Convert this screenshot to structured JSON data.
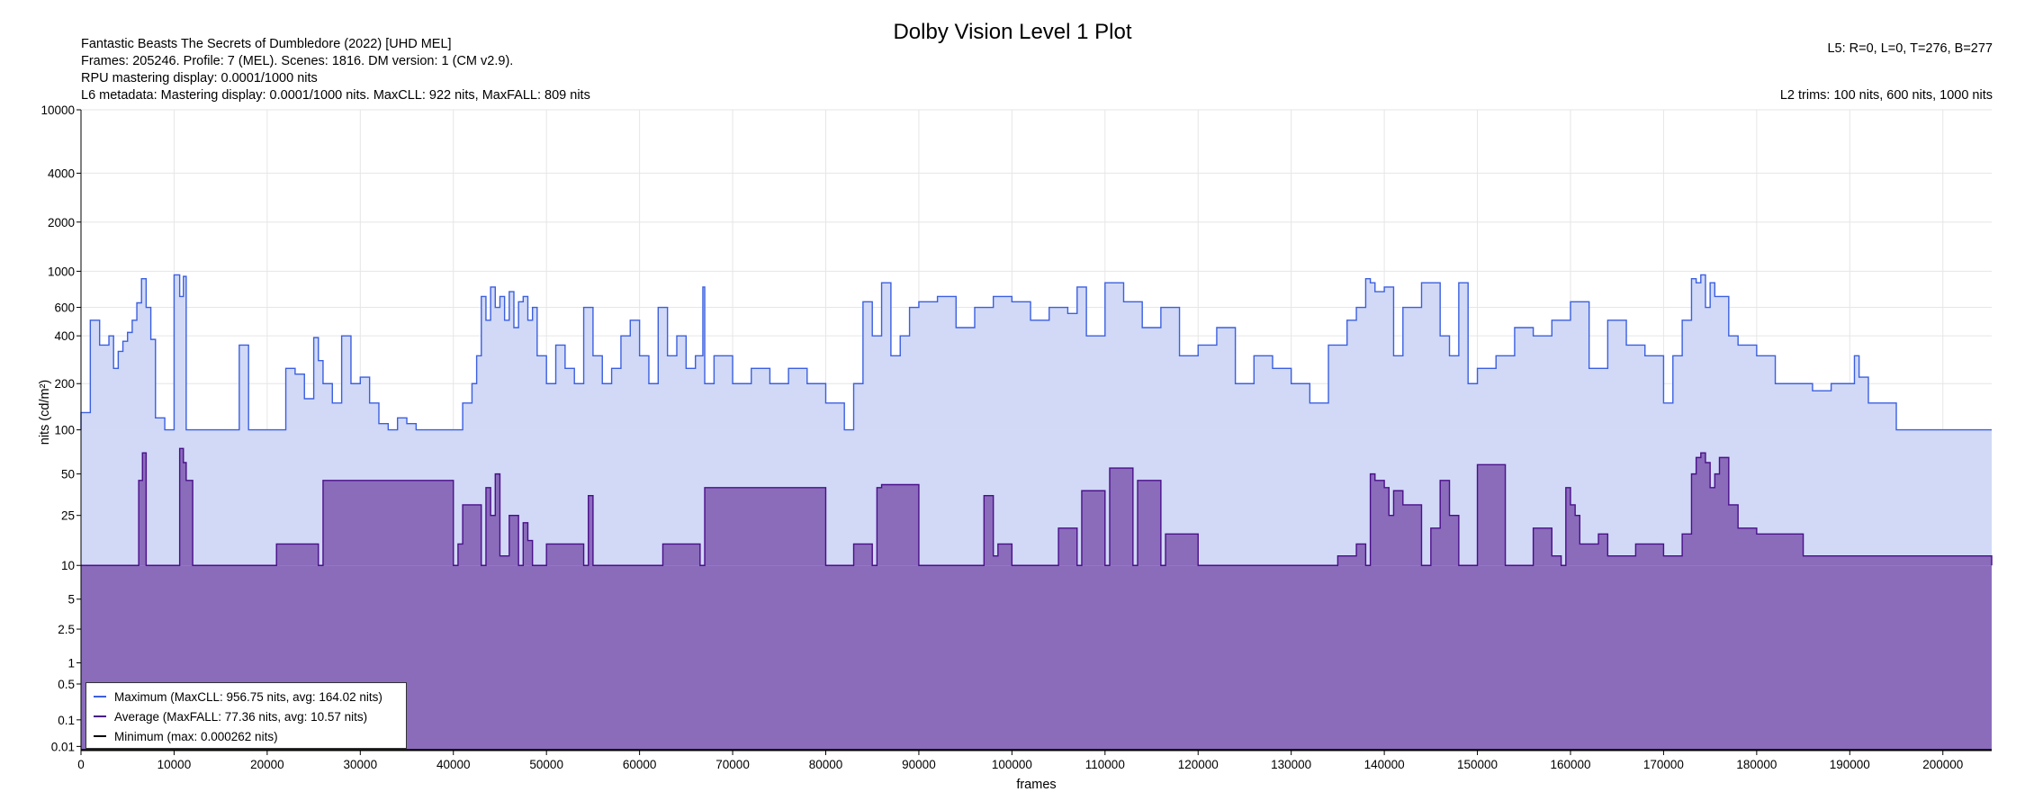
{
  "title": "Dolby Vision Level 1 Plot",
  "info_left": [
    "Fantastic Beasts The Secrets of Dumbledore (2022) [UHD MEL]",
    "Frames: 205246. Profile: 7 (MEL). Scenes: 1816. DM version: 1 (CM v2.9).",
    "RPU mastering display: 0.0001/1000 nits",
    "L6 metadata: Mastering display: 0.0001/1000 nits. MaxCLL: 922 nits, MaxFALL: 809 nits"
  ],
  "info_right": {
    "l5": "L5: R=0, L=0, T=276, B=277",
    "l2": "L2 trims: 100 nits, 600 nits, 1000 nits"
  },
  "legend": [
    {
      "label": "Maximum (MaxCLL: 956.75 nits, avg: 164.02 nits)",
      "color": "#3b5fe0"
    },
    {
      "label": "Average (MaxFALL: 77.36 nits, avg: 10.57 nits)",
      "color": "#4b0f8a"
    },
    {
      "label": "Minimum (max: 0.000262 nits)",
      "color": "#000000"
    }
  ],
  "chart_data": {
    "type": "area",
    "title": "Dolby Vision Level 1 Plot",
    "xlabel": "frames",
    "ylabel": "nits (cd/m²)",
    "xlim": [
      0,
      205246
    ],
    "ylim": [
      0.005,
      10000
    ],
    "y_scale": "PQ (perceptual quantizer)",
    "x_ticks": [
      "0",
      "10000",
      "20000",
      "30000",
      "40000",
      "50000",
      "60000",
      "70000",
      "80000",
      "90000",
      "100000",
      "110000",
      "120000",
      "130000",
      "140000",
      "150000",
      "160000",
      "170000",
      "180000",
      "190000",
      "200000"
    ],
    "y_ticks": [
      "0.01",
      "0.1",
      "0.5",
      "1",
      "2.5",
      "5",
      "10",
      "25",
      "50",
      "100",
      "200",
      "400",
      "600",
      "1000",
      "2000",
      "4000",
      "10000"
    ],
    "grid": true,
    "legend_position": "bottom-left",
    "colors": {
      "max_line": "#3b5fe0",
      "max_fill": "#d1d9f7",
      "avg_line": "#4b0f8a",
      "avg_fill": "#8a6cbb",
      "min_line": "#000000"
    },
    "series": [
      {
        "name": "Maximum (MaxCLL: 956.75 nits, avg: 164.02 nits)",
        "baseline": 100,
        "x": [
          0,
          1000,
          2000,
          3000,
          3500,
          4000,
          4500,
          5000,
          5500,
          6000,
          6500,
          7000,
          7500,
          8000,
          9000,
          10000,
          10600,
          11000,
          11300,
          11600,
          12000,
          13000,
          15000,
          16000,
          17000,
          18000,
          20000,
          21000,
          22000,
          23000,
          24000,
          25000,
          25500,
          26000,
          27000,
          28000,
          29000,
          30000,
          31000,
          32000,
          33000,
          34000,
          35000,
          36000,
          38000,
          40000,
          41000,
          42000,
          42500,
          43000,
          43500,
          44000,
          44500,
          45000,
          45500,
          46000,
          46500,
          47000,
          47500,
          48000,
          48500,
          49000,
          50000,
          51000,
          52000,
          53000,
          54000,
          55000,
          56000,
          57000,
          58000,
          59000,
          60000,
          61000,
          62000,
          63000,
          64000,
          65000,
          66000,
          66800,
          67000,
          68000,
          70000,
          72000,
          74000,
          76000,
          78000,
          80000,
          82000,
          83000,
          84000,
          85000,
          86000,
          86500,
          87000,
          88000,
          89000,
          90000,
          92000,
          94000,
          96000,
          98000,
          100000,
          102000,
          104000,
          106000,
          107000,
          108000,
          110000,
          112000,
          114000,
          116000,
          118000,
          120000,
          122000,
          124000,
          126000,
          128000,
          130000,
          132000,
          134000,
          136000,
          137000,
          138000,
          138500,
          139000,
          140000,
          141000,
          142000,
          144000,
          146000,
          147000,
          148000,
          149000,
          150000,
          152000,
          154000,
          156000,
          158000,
          160000,
          162000,
          164000,
          166000,
          168000,
          170000,
          171000,
          172000,
          173000,
          173500,
          174000,
          174500,
          175000,
          175500,
          176000,
          177000,
          178000,
          180000,
          182000,
          184000,
          186000,
          188000,
          190000,
          190500,
          191000,
          192000,
          195000,
          200000,
          205246
        ],
        "values": [
          130,
          500,
          350,
          400,
          250,
          320,
          370,
          420,
          500,
          640,
          900,
          600,
          380,
          120,
          100,
          950,
          700,
          930,
          100,
          100,
          100,
          100,
          100,
          100,
          350,
          100,
          100,
          100,
          250,
          230,
          160,
          390,
          280,
          200,
          150,
          400,
          200,
          220,
          150,
          110,
          100,
          120,
          110,
          100,
          100,
          100,
          150,
          200,
          300,
          700,
          500,
          800,
          600,
          700,
          500,
          750,
          450,
          650,
          700,
          500,
          600,
          300,
          200,
          350,
          250,
          200,
          600,
          300,
          200,
          250,
          400,
          500,
          300,
          200,
          600,
          300,
          400,
          250,
          300,
          800,
          200,
          300,
          200,
          250,
          200,
          250,
          200,
          150,
          100,
          200,
          650,
          400,
          850,
          850,
          300,
          400,
          600,
          650,
          700,
          450,
          600,
          700,
          650,
          500,
          600,
          550,
          800,
          400,
          850,
          650,
          450,
          600,
          300,
          350,
          450,
          200,
          300,
          250,
          200,
          150,
          350,
          500,
          600,
          900,
          850,
          750,
          800,
          300,
          600,
          850,
          400,
          300,
          850,
          200,
          250,
          300,
          450,
          400,
          500,
          650,
          250,
          500,
          350,
          300,
          150,
          300,
          500,
          900,
          850,
          950,
          600,
          850,
          700,
          700,
          400,
          350,
          300,
          200,
          200,
          180,
          200,
          200,
          300,
          220,
          150,
          100,
          100,
          100
        ]
      },
      {
        "name": "Average (MaxFALL: 77.36 nits, avg: 10.57 nits)",
        "baseline": 10,
        "x": [
          0,
          5000,
          6200,
          6600,
          7000,
          7500,
          10300,
          10600,
          11000,
          11300,
          12000,
          20500,
          21000,
          25500,
          26000,
          40000,
          40500,
          41000,
          43000,
          43500,
          44000,
          44500,
          45000,
          46000,
          47000,
          47500,
          48000,
          48500,
          49500,
          50000,
          54000,
          54500,
          55000,
          62000,
          62500,
          66500,
          67000,
          80000,
          82500,
          83000,
          85000,
          85500,
          86000,
          90000,
          96500,
          97000,
          98000,
          98500,
          100000,
          105000,
          107000,
          107500,
          110000,
          110500,
          113000,
          113500,
          116000,
          116500,
          120000,
          132000,
          135000,
          137000,
          138000,
          138500,
          139000,
          140000,
          140500,
          141000,
          142000,
          144000,
          145000,
          146000,
          147000,
          148000,
          149000,
          150000,
          153000,
          156000,
          158000,
          159000,
          159500,
          160000,
          160500,
          161000,
          163000,
          164000,
          167000,
          170000,
          172000,
          173000,
          173500,
          174000,
          174500,
          175000,
          175500,
          176000,
          177000,
          178000,
          180000,
          185000,
          205246
        ],
        "values": [
          10,
          10,
          45,
          70,
          10,
          10,
          10,
          75,
          60,
          45,
          10,
          10,
          15,
          10,
          45,
          10,
          15,
          30,
          10,
          40,
          25,
          50,
          12,
          25,
          10,
          22,
          16,
          10,
          10,
          15,
          10,
          35,
          10,
          10,
          15,
          10,
          40,
          10,
          10,
          15,
          10,
          40,
          42,
          10,
          10,
          35,
          12,
          15,
          10,
          20,
          10,
          38,
          10,
          55,
          10,
          45,
          10,
          18,
          10,
          10,
          12,
          15,
          10,
          50,
          45,
          40,
          25,
          38,
          30,
          10,
          20,
          45,
          25,
          10,
          10,
          58,
          10,
          20,
          12,
          10,
          40,
          30,
          25,
          15,
          18,
          12,
          15,
          12,
          18,
          50,
          65,
          70,
          60,
          40,
          50,
          65,
          30,
          20,
          18,
          12,
          10
        ]
      },
      {
        "name": "Minimum (max: 0.000262 nits)",
        "values": [
          0.000262
        ]
      }
    ]
  }
}
